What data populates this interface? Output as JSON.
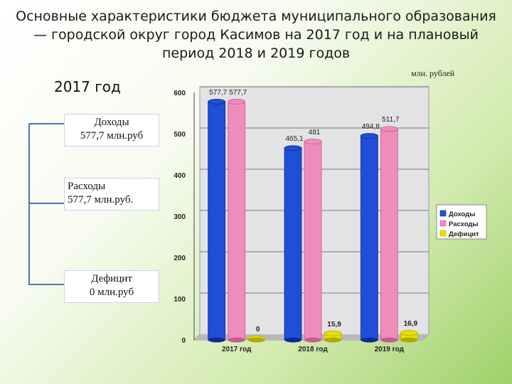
{
  "title": "Основные характеристики бюджета муниципального образования — городской округ город Касимов на 2017 год и на плановый период 2018 и 2019 годов",
  "unit_label": "млн. рублей",
  "left_panel": {
    "year": "2017 год",
    "income_box": {
      "line1": "Доходы",
      "line2": "577,7 млн.руб"
    },
    "expense_box": {
      "line1": "Расходы",
      "line2": "577,7 млн.руб."
    },
    "deficit_box": {
      "line1": "Дефицит",
      "line2": "0 млн.руб"
    }
  },
  "colors": {
    "income": "#1f4fd6",
    "expense": "#f08cbc",
    "deficit": "#e8e000",
    "plot_bg": "#e3e3e6"
  },
  "chart_data": {
    "type": "bar",
    "categories": [
      "2017 год",
      "2018 год",
      "2019 год"
    ],
    "series": [
      {
        "name": "Доходы",
        "values": [
          577.7,
          465.1,
          494.8
        ],
        "labels": [
          "577,7",
          "465,1",
          "494,8"
        ]
      },
      {
        "name": "Расходы",
        "values": [
          577.7,
          481,
          511.7
        ],
        "labels": [
          "577,7",
          "481",
          "511,7"
        ]
      },
      {
        "name": "Дефицит",
        "values": [
          0,
          15.9,
          16.9
        ],
        "labels": [
          "0",
          "15,9",
          "16,9"
        ]
      }
    ],
    "ylim": [
      0,
      600
    ],
    "yticks": [
      0,
      100,
      200,
      300,
      400,
      500,
      600
    ],
    "legend_position": "right",
    "grid": true
  }
}
